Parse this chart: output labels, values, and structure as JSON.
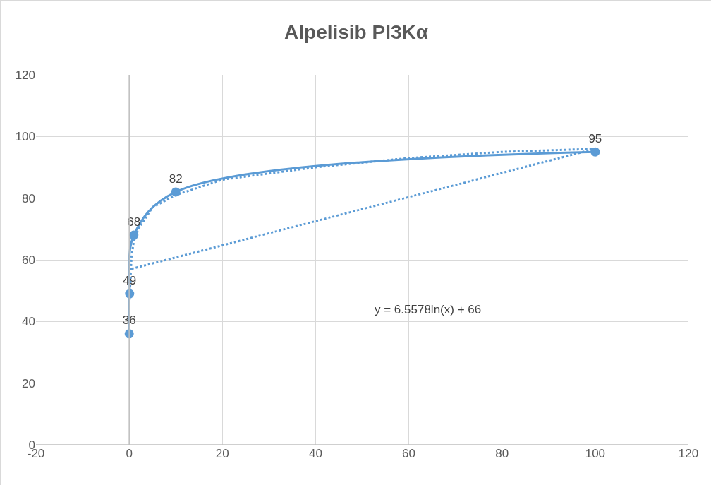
{
  "chart_data": {
    "type": "scatter",
    "title": "Alpelisib PI3Kα",
    "x": [
      0.01,
      0.1,
      1,
      10,
      100
    ],
    "series": [
      {
        "type": "line",
        "color": "#5b9bd5",
        "values": [
          36,
          49,
          68,
          82,
          95
        ],
        "marker": "circle",
        "data_labels": true
      },
      {
        "type": "line",
        "color": "#5b9bd5",
        "line_style": "dotted",
        "marker": "none",
        "x": [
          0.01,
          0.05,
          0.5,
          1,
          2,
          5,
          10,
          20,
          40,
          60,
          80,
          100,
          0.3
        ],
        "values": [
          36,
          46,
          61,
          66,
          70,
          77,
          81,
          86,
          90,
          93,
          95,
          96,
          57
        ]
      }
    ],
    "annotations": [
      "y = 6.5578ln(x) + 66"
    ],
    "xlim": [
      -20,
      120
    ],
    "xticks": [
      -20,
      0,
      20,
      40,
      60,
      80,
      100,
      120
    ],
    "ylim": [
      0,
      120
    ],
    "yticks": [
      0,
      20,
      40,
      60,
      80,
      100,
      120
    ],
    "grid": true
  }
}
